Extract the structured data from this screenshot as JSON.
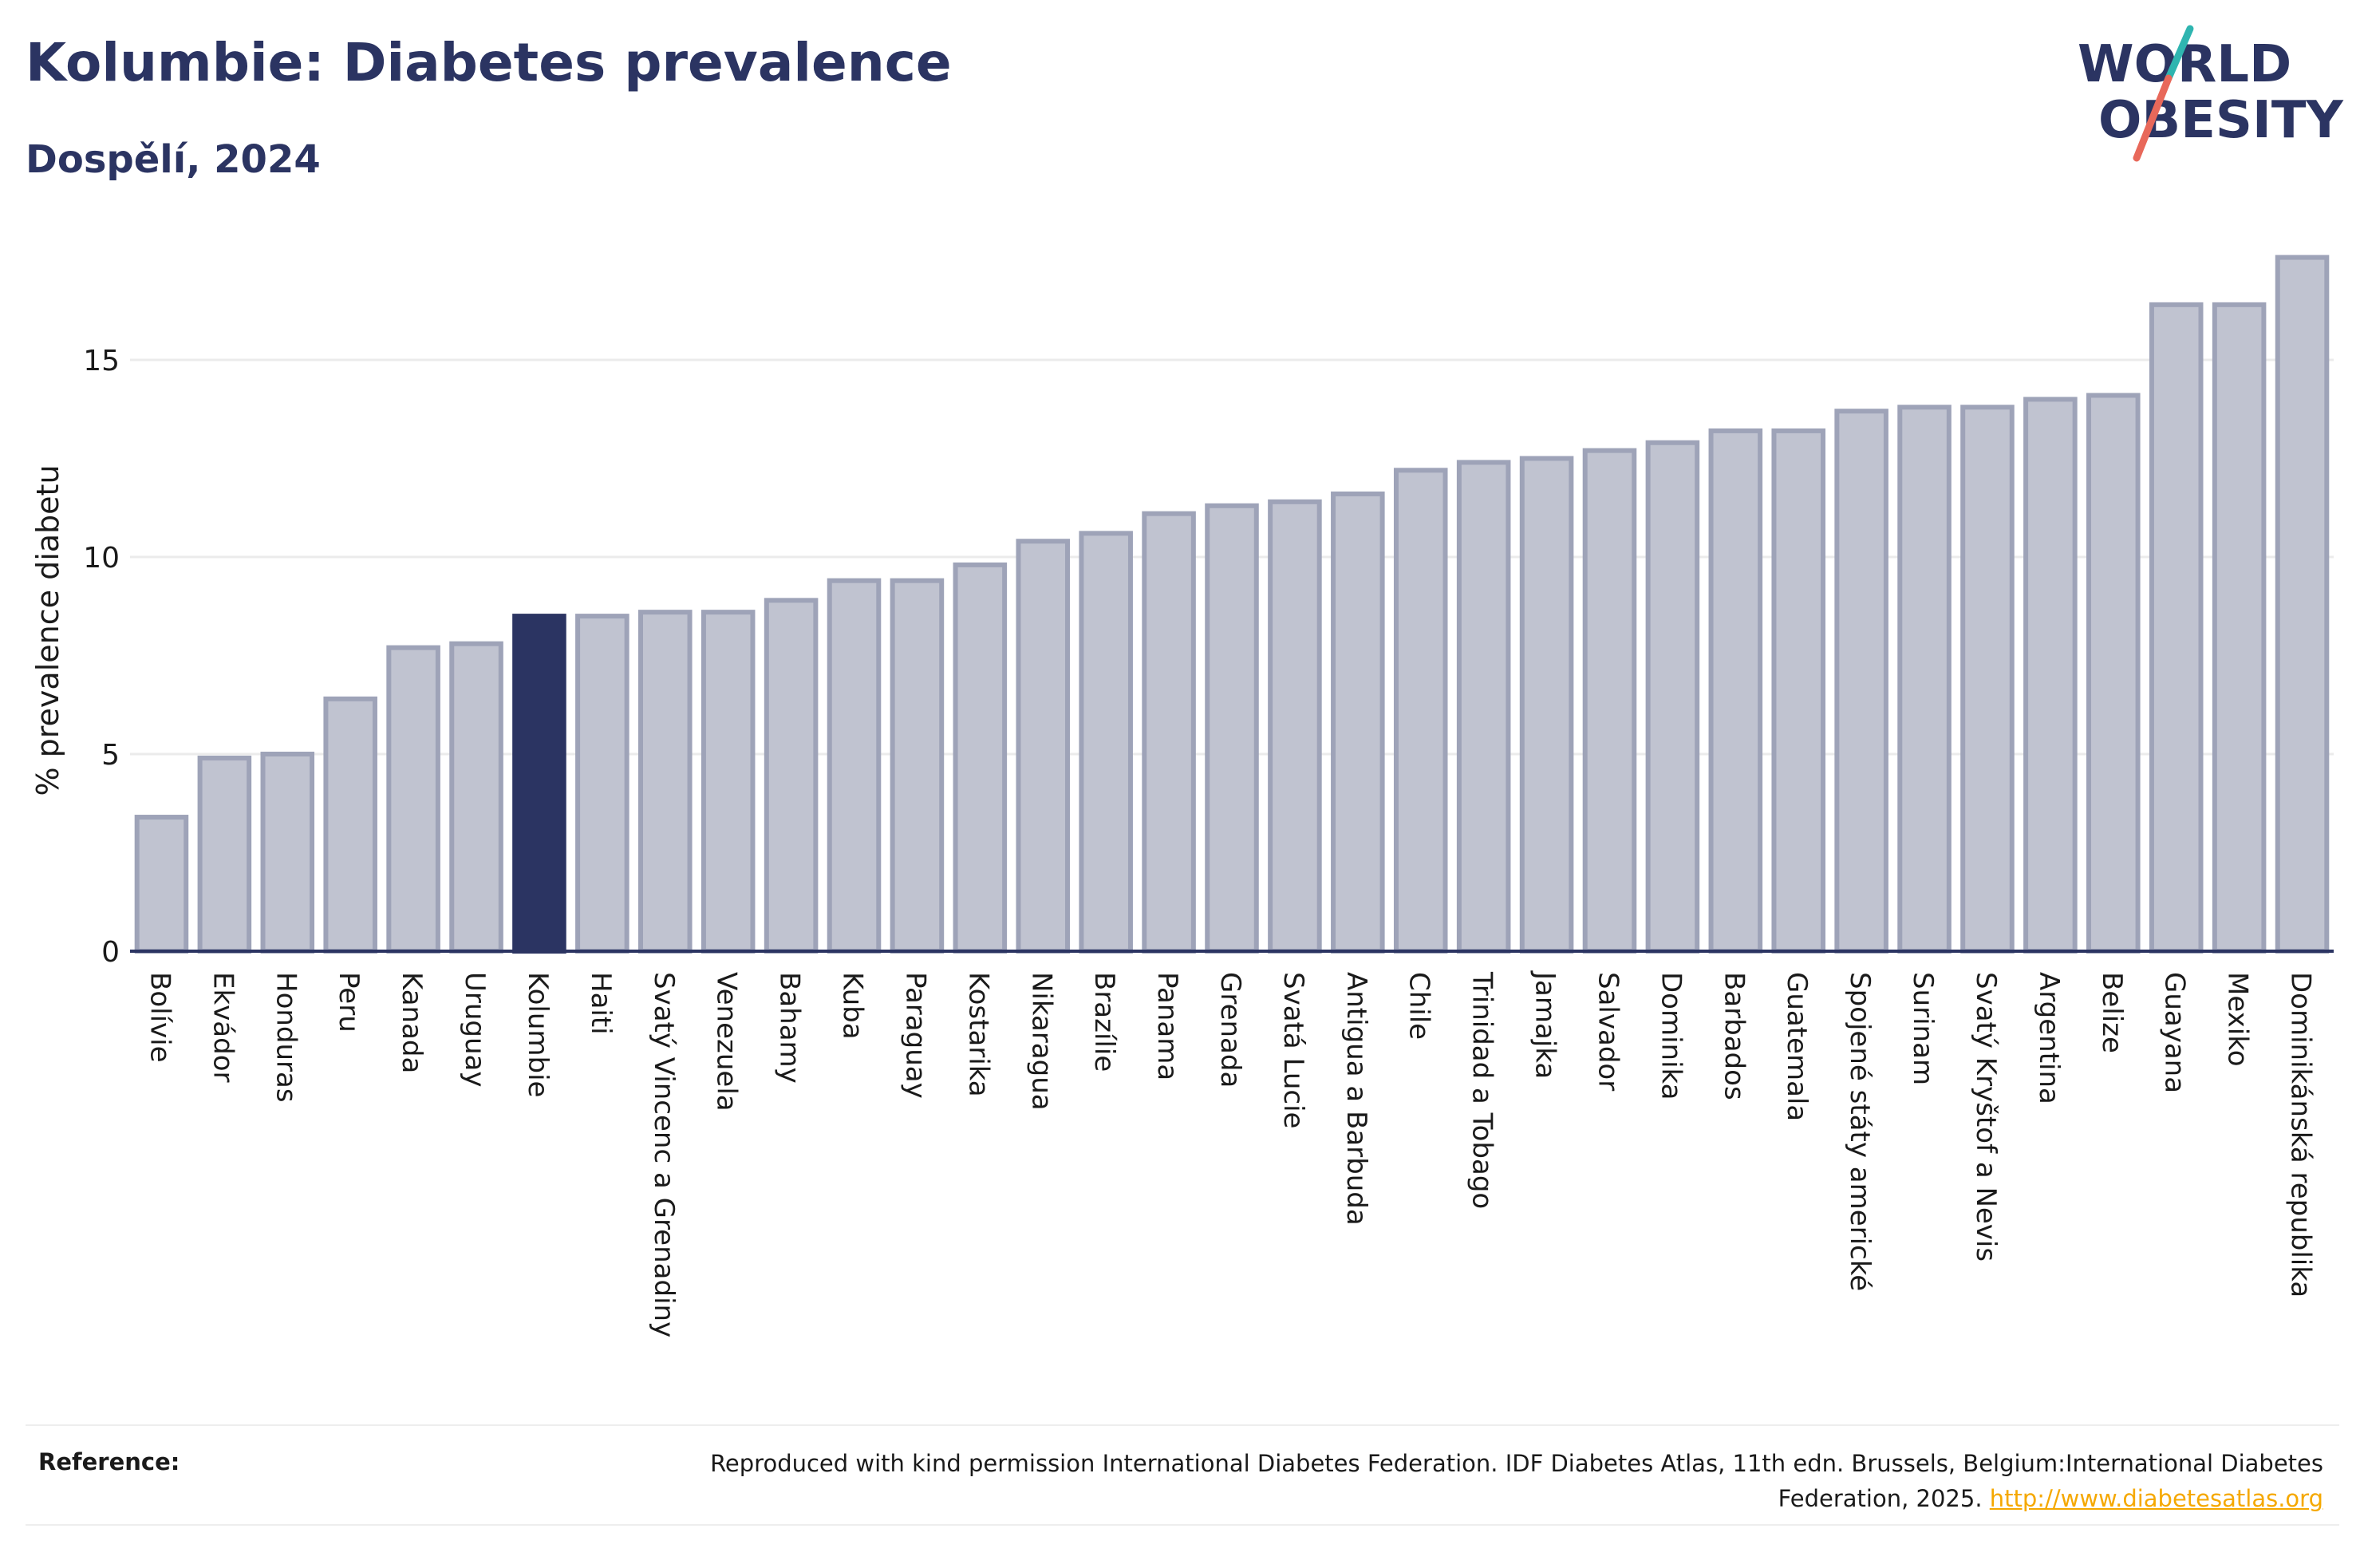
{
  "header": {
    "title": "Kolumbie: Diabetes prevalence",
    "subtitle": "Dospělí, 2024"
  },
  "logo": {
    "line1": "WORLD",
    "line2": "OBESITY",
    "icon": "world-obesity-logo"
  },
  "colors": {
    "bar_fill": "#c0c3d0",
    "bar_stroke": "#9ea3b8",
    "highlight": "#2b3462",
    "grid": "#ebebeb",
    "axis": "#2b3462",
    "title": "#2b3462",
    "logo_accent_teal": "#2fb5b0",
    "logo_accent_red": "#e8685a",
    "link": "#f5a800"
  },
  "chart_data": {
    "type": "bar",
    "title": "Kolumbie: Diabetes prevalence",
    "subtitle": "Dospělí, 2024",
    "xlabel": "",
    "ylabel": "% prevalence diabetu",
    "ylim": [
      0,
      18
    ],
    "yticks": [
      0,
      5,
      10,
      15
    ],
    "grid": true,
    "highlight": "Kolumbie",
    "categories": [
      "Bolívie",
      "Ekvádor",
      "Honduras",
      "Peru",
      "Kanada",
      "Uruguay",
      "Kolumbie",
      "Haiti",
      "Svatý Vincenc a Grenadiny",
      "Venezuela",
      "Bahamy",
      "Kuba",
      "Paraguay",
      "Kostarika",
      "Nikaragua",
      "Brazílie",
      "Panama",
      "Grenada",
      "Svatá Lucie",
      "Antigua a Barbuda",
      "Chile",
      "Trinidad a Tobago",
      "Jamajka",
      "Salvador",
      "Dominika",
      "Barbados",
      "Guatemala",
      "Spojené státy americké",
      "Surinam",
      "Svatý Kryštof a Nevis",
      "Argentina",
      "Belize",
      "Guayana",
      "Mexiko",
      "Dominikánská republika"
    ],
    "values": [
      3.4,
      4.9,
      5.0,
      6.4,
      7.7,
      7.8,
      8.5,
      8.5,
      8.6,
      8.6,
      8.9,
      9.4,
      9.4,
      9.8,
      10.4,
      10.6,
      11.1,
      11.3,
      11.4,
      11.6,
      12.2,
      12.4,
      12.5,
      12.7,
      12.9,
      13.2,
      13.2,
      13.7,
      13.8,
      13.8,
      14.0,
      14.1,
      16.4,
      16.4,
      17.6
    ]
  },
  "footer": {
    "reference_label": "Reference:",
    "reference_text": "Reproduced with kind permission International Diabetes Federation. IDF Diabetes Atlas, 11th edn. Brussels, Belgium:International Diabetes Federation, 2025. ",
    "reference_link": "http://www.diabetesatlas.org"
  }
}
